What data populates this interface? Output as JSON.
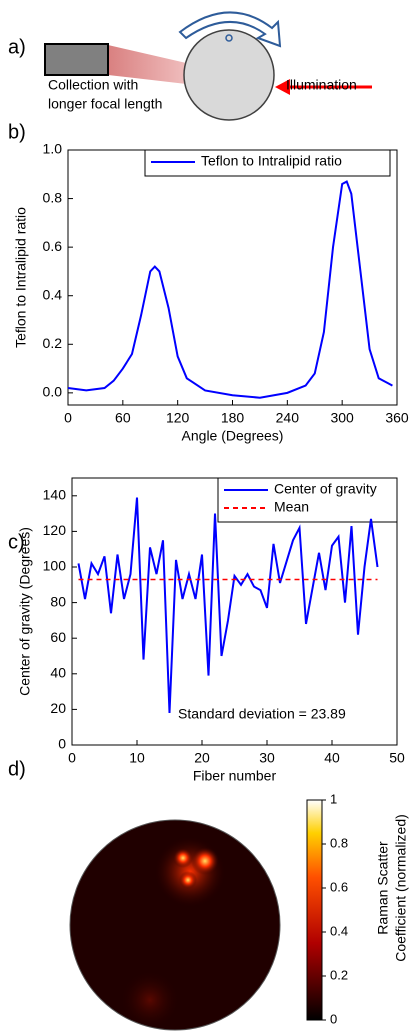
{
  "panels": [
    "a)",
    "b)",
    "c)",
    "d)"
  ],
  "diagram": {
    "collection": [
      "Collection with",
      "longer focal length"
    ],
    "illumination": "Illumination"
  },
  "chart_data": [
    {
      "type": "line",
      "x_label": "Angle (Degrees)",
      "y_label": "Teflon to Intralipid ratio",
      "xlim": [
        0,
        360
      ],
      "xticks": [
        0,
        60,
        120,
        180,
        240,
        300,
        360
      ],
      "ylim": [
        -0.05,
        1.0
      ],
      "yticks": [
        {
          "value": 0,
          "label": "0.0"
        },
        {
          "value": 0.2,
          "label": "0.2"
        },
        {
          "value": 0.4,
          "label": "0.4"
        },
        {
          "value": 0.6,
          "label": "0.6"
        },
        {
          "value": 0.8,
          "label": "0.8"
        },
        {
          "value": 1.0,
          "label": "1.0"
        }
      ],
      "series": [
        {
          "name": "Teflon to Intralipid ratio",
          "color": "#0000ff",
          "x": [
            0,
            20,
            40,
            50,
            60,
            70,
            80,
            90,
            95,
            100,
            110,
            120,
            130,
            150,
            180,
            210,
            240,
            260,
            270,
            280,
            290,
            300,
            305,
            310,
            320,
            330,
            340,
            350,
            355
          ],
          "values": [
            0.02,
            0.01,
            0.02,
            0.05,
            0.1,
            0.16,
            0.32,
            0.5,
            0.52,
            0.5,
            0.35,
            0.15,
            0.06,
            0.01,
            -0.01,
            -0.02,
            0,
            0.03,
            0.08,
            0.25,
            0.6,
            0.86,
            0.87,
            0.82,
            0.5,
            0.18,
            0.06,
            0.04,
            0.03
          ]
        }
      ]
    },
    {
      "type": "line",
      "x_label": "Fiber number",
      "y_label": "Center of gravity (Degrees)",
      "xlim": [
        0,
        50
      ],
      "xticks": [
        0,
        10,
        20,
        30,
        40,
        50
      ],
      "ylim": [
        0,
        150
      ],
      "yticks": [
        0,
        20,
        40,
        60,
        80,
        100,
        120,
        140
      ],
      "annotation": "Standard deviation = 23.89",
      "series": [
        {
          "name": "Center of gravity",
          "color": "#0000ff",
          "x": [
            1,
            2,
            3,
            4,
            5,
            6,
            7,
            8,
            9,
            10,
            11,
            12,
            13,
            14,
            15,
            16,
            17,
            18,
            19,
            20,
            21,
            22,
            23,
            24,
            25,
            26,
            27,
            28,
            29,
            30,
            31,
            32,
            33,
            34,
            35,
            36,
            37,
            38,
            39,
            40,
            41,
            42,
            43,
            44,
            45,
            46,
            47
          ],
          "values": [
            102,
            82,
            102,
            96,
            106,
            74,
            107,
            82,
            96,
            139,
            48,
            111,
            96,
            115,
            18,
            104,
            82,
            96,
            82,
            107,
            39,
            130,
            50,
            70,
            95,
            90,
            96,
            89,
            87,
            77,
            113,
            91,
            103,
            115,
            122,
            68,
            88,
            108,
            87,
            112,
            117,
            80,
            123,
            62,
            100,
            127,
            100
          ]
        },
        {
          "name": "Mean",
          "color": "#ff0000",
          "dashed": true,
          "x": [
            1,
            47
          ],
          "values": [
            93,
            93
          ]
        }
      ]
    },
    {
      "type": "heatmap",
      "colorbar_label": [
        "Raman Scatter",
        "Coefficient (normalized)"
      ],
      "clim": [
        0,
        1
      ],
      "colorbar_ticks": [
        0,
        0.2,
        0.4,
        0.6,
        0.8,
        1
      ]
    }
  ]
}
